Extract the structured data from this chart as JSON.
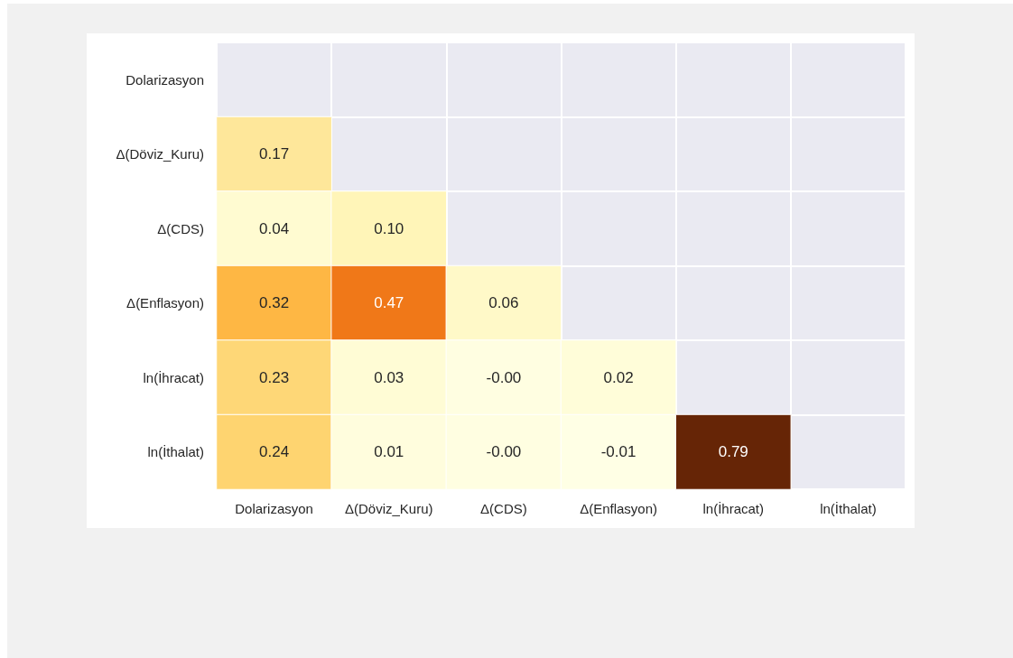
{
  "chart_data": {
    "type": "heatmap",
    "categories": [
      "Dolarizasyon",
      "Δ(Döviz_Kuru)",
      "Δ(CDS)",
      "Δ(Enflasyon)",
      "ln(İhracat)",
      "ln(İthalat)"
    ],
    "y_categories": [
      "Dolarizasyon",
      "Δ(Döviz_Kuru)",
      "Δ(CDS)",
      "Δ(Enflasyon)",
      "ln(İhracat)",
      "ln(İthalat)"
    ],
    "cells": [
      [
        null,
        null,
        null,
        null,
        null,
        null
      ],
      [
        0.17,
        null,
        null,
        null,
        null,
        null
      ],
      [
        0.04,
        0.1,
        null,
        null,
        null,
        null
      ],
      [
        0.32,
        0.47,
        0.06,
        null,
        null,
        null
      ],
      [
        0.23,
        0.03,
        -0.0,
        0.02,
        null,
        null
      ],
      [
        0.24,
        0.01,
        -0.0,
        -0.01,
        0.79,
        null
      ]
    ],
    "cell_labels": [
      [
        null,
        null,
        null,
        null,
        null,
        null
      ],
      [
        "0.17",
        null,
        null,
        null,
        null,
        null
      ],
      [
        "0.04",
        "0.10",
        null,
        null,
        null,
        null
      ],
      [
        "0.32",
        "0.47",
        "0.06",
        null,
        null,
        null
      ],
      [
        "0.23",
        "0.03",
        "-0.00",
        "0.02",
        null,
        null
      ],
      [
        "0.24",
        "0.01",
        "-0.00",
        "-0.01",
        "0.79",
        null
      ]
    ],
    "colors": [
      "#ffffe5",
      "#fff7bc",
      "#fee391",
      "#fec44f",
      "#fe9929",
      "#ec7014",
      "#cc4c02",
      "#993404",
      "#662506"
    ],
    "grid": true
  }
}
